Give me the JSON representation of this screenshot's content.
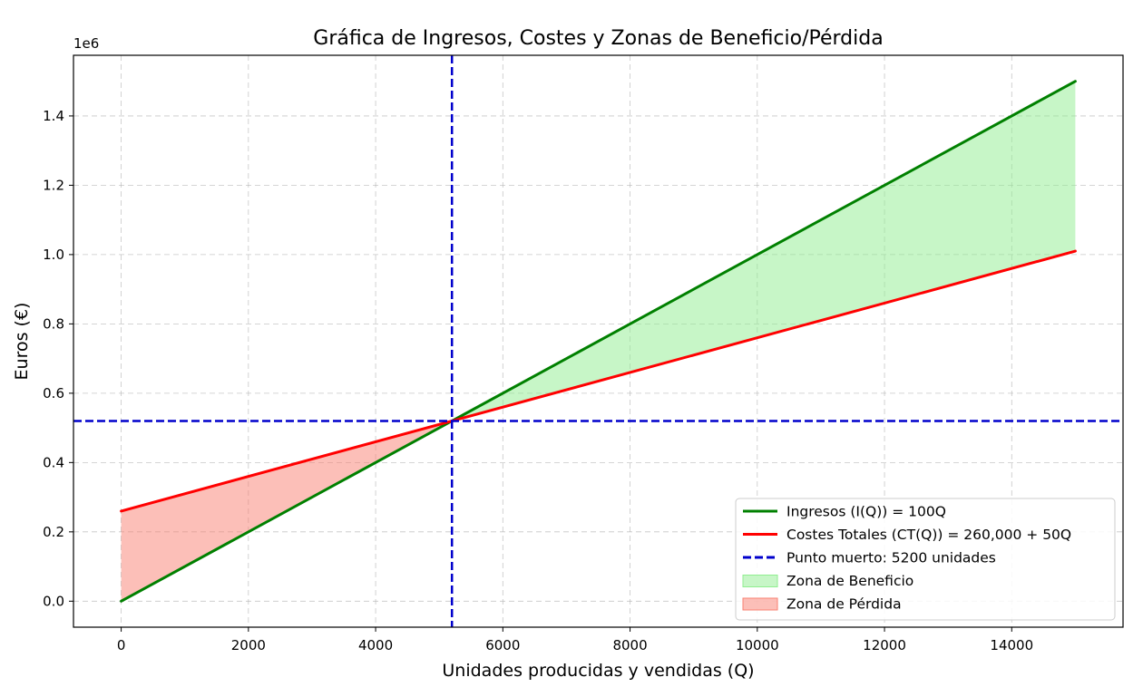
{
  "chart_data": {
    "type": "line",
    "title": "Gráfica de Ingresos, Costes y Zonas de Beneficio/Pérdida",
    "xlabel": "Unidades producidas y vendidas (Q)",
    "ylabel": "Euros (€)",
    "y_offset_text": "1e6",
    "xlim": [
      -750,
      15750
    ],
    "ylim": [
      -75000,
      1575000
    ],
    "x_ticks": [
      0,
      2000,
      4000,
      6000,
      8000,
      10000,
      12000,
      14000
    ],
    "y_ticks": [
      0,
      200000,
      400000,
      600000,
      800000,
      1000000,
      1200000,
      1400000
    ],
    "x_tick_labels": [
      "0",
      "2000",
      "4000",
      "6000",
      "8000",
      "10000",
      "12000",
      "14000"
    ],
    "y_tick_labels": [
      "0.0",
      "0.2",
      "0.4",
      "0.6",
      "0.8",
      "1.0",
      "1.2",
      "1.4"
    ],
    "grid": true,
    "legend_position": "lower-right",
    "series": [
      {
        "name": "Ingresos (I(Q)) = 100Q",
        "color": "#008000",
        "style": "solid",
        "x": [
          0,
          15000
        ],
        "y": [
          0,
          1500000
        ]
      },
      {
        "name": "Costes Totales (CT(Q)) = 260,000 + 50Q",
        "color": "#ff0000",
        "style": "solid",
        "x": [
          0,
          15000
        ],
        "y": [
          260000,
          1010000
        ]
      }
    ],
    "break_even": {
      "name": "Punto muerto: 5200 unidades",
      "color": "#0000cc",
      "style": "dashed",
      "x": 5200,
      "y": 520000
    },
    "areas": [
      {
        "name": "Zona de Beneficio",
        "color": "#90ee90",
        "from_x": 5200,
        "to_x": 15000
      },
      {
        "name": "Zona de Pérdida",
        "color": "#fa8072",
        "from_x": 0,
        "to_x": 5200
      }
    ]
  }
}
